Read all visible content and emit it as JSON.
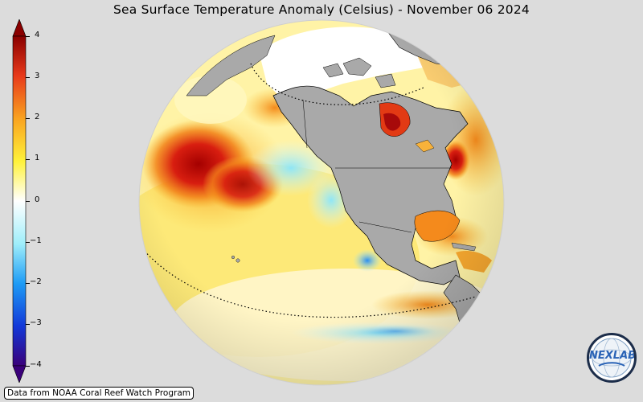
{
  "title": "Sea Surface Temperature Anomaly (Celsius) - November 06 2024",
  "colorbar": {
    "ticks": [
      "4",
      "3",
      "2",
      "1",
      "0",
      "−1",
      "−2",
      "−3",
      "−4"
    ],
    "min": -4,
    "max": 4,
    "colors": [
      "#3a007a",
      "#1238d8",
      "#1e9cf5",
      "#9feefa",
      "#ffffff",
      "#fff23a",
      "#f9a320",
      "#e8391a",
      "#8a0000"
    ]
  },
  "credit": "Data from NOAA Coral Reef Watch Program",
  "logo": {
    "text": "NEXLAB"
  }
}
